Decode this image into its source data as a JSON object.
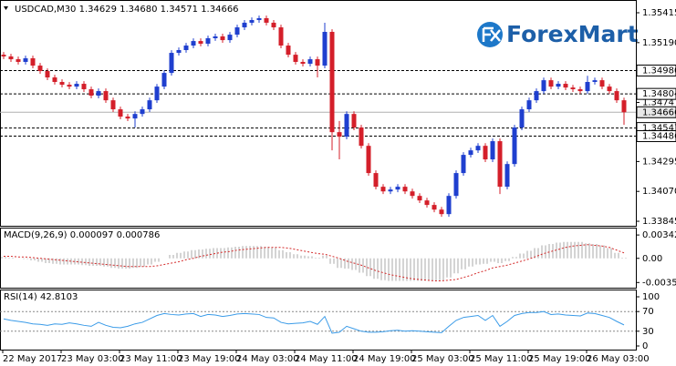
{
  "chart_data": [
    {
      "type": "candlestick",
      "title": "USDCAD,M30  1.34629 1.34680 1.34571 1.34666",
      "logo": "ForexMart",
      "up_color": "#1f3fcf",
      "down_color": "#d41f2a",
      "ylim": [
        1.33811,
        1.35511
      ],
      "yticks": [
        1.35415,
        {
          "value": 1.3519,
          "label": "1.35190"
        },
        1.3474,
        1.34295,
        {
          "value": 1.3407,
          "label": "1.34070"
        },
        1.33845
      ],
      "levels": [
        {
          "value": 1.3498,
          "label": "1.34980",
          "line": "dashed"
        },
        {
          "value": 1.34804,
          "line": "dashed"
        },
        {
          "value": 1.34666,
          "line": "solid"
        },
        {
          "value": 1.34547,
          "line": "dashed"
        },
        {
          "value": 1.34486,
          "line": "dashed"
        }
      ],
      "x_labels": [
        "22 May 2017",
        "23 May 03:00",
        "23 May 11:00",
        "23 May 19:00",
        "24 May 03:00",
        "24 May 11:00",
        "24 May 19:00",
        "25 May 03:00",
        "25 May 11:00",
        "25 May 19:00",
        "26 May 03:00"
      ],
      "candles": [
        [
          1.35099,
          1.35119,
          1.35066,
          1.35086
        ],
        [
          1.35086,
          1.35106,
          1.35045,
          1.35065
        ],
        [
          1.35065,
          1.35085,
          1.35025,
          1.35045
        ],
        [
          1.35045,
          1.35092,
          1.35025,
          1.35072
        ],
        [
          1.35072,
          1.35092,
          1.34997,
          1.35017
        ],
        [
          1.35017,
          1.35037,
          1.34956,
          1.34976
        ],
        [
          1.34976,
          1.34996,
          1.34908,
          1.34928
        ],
        [
          1.34928,
          1.34948,
          1.34874,
          1.34894
        ],
        [
          1.34894,
          1.34914,
          1.34853,
          1.34873
        ],
        [
          1.34873,
          1.34893,
          1.34839,
          1.34859
        ],
        [
          1.34859,
          1.349,
          1.34839,
          1.3488
        ],
        [
          1.3488,
          1.349,
          1.34819,
          1.34839
        ],
        [
          1.34839,
          1.34859,
          1.34771,
          1.34791
        ],
        [
          1.34791,
          1.34845,
          1.34771,
          1.34825
        ],
        [
          1.34825,
          1.34845,
          1.34736,
          1.34756
        ],
        [
          1.34756,
          1.34776,
          1.34668,
          1.34688
        ],
        [
          1.34688,
          1.34708,
          1.34613,
          1.34633
        ],
        [
          1.34633,
          1.34653,
          1.34599,
          1.34619
        ],
        [
          1.34619,
          1.34673,
          1.34551,
          1.34653
        ],
        [
          1.34653,
          1.34708,
          1.34633,
          1.34688
        ],
        [
          1.34688,
          1.34776,
          1.34668,
          1.34756
        ],
        [
          1.34756,
          1.34879,
          1.34736,
          1.34859
        ],
        [
          1.34859,
          1.34982,
          1.34839,
          1.34962
        ],
        [
          1.34962,
          1.35133,
          1.34942,
          1.35113
        ],
        [
          1.35113,
          1.35154,
          1.35093,
          1.35134
        ],
        [
          1.35134,
          1.35188,
          1.35114,
          1.35168
        ],
        [
          1.35168,
          1.35222,
          1.35148,
          1.35202
        ],
        [
          1.35202,
          1.35222,
          1.35162,
          1.35182
        ],
        [
          1.35182,
          1.35243,
          1.35162,
          1.35223
        ],
        [
          1.35223,
          1.35257,
          1.35203,
          1.35237
        ],
        [
          1.35237,
          1.35257,
          1.35189,
          1.35209
        ],
        [
          1.35209,
          1.3527,
          1.35189,
          1.3525
        ],
        [
          1.3525,
          1.35325,
          1.3523,
          1.35305
        ],
        [
          1.35305,
          1.3536,
          1.35285,
          1.3534
        ],
        [
          1.3534,
          1.3538,
          1.3532,
          1.3536
        ],
        [
          1.3536,
          1.35394,
          1.3534,
          1.35374
        ],
        [
          1.35374,
          1.35394,
          1.3532,
          1.3534
        ],
        [
          1.3534,
          1.3536,
          1.35285,
          1.35305
        ],
        [
          1.35305,
          1.35325,
          1.35148,
          1.35168
        ],
        [
          1.35168,
          1.35188,
          1.35079,
          1.35099
        ],
        [
          1.35099,
          1.35119,
          1.35025,
          1.35045
        ],
        [
          1.35045,
          1.35065,
          1.35011,
          1.35031
        ],
        [
          1.35031,
          1.35085,
          1.35011,
          1.35065
        ],
        [
          1.35065,
          1.35085,
          1.34928,
          1.35017
        ],
        [
          1.35017,
          1.3534,
          1.34997,
          1.35271
        ],
        [
          1.35271,
          1.35291,
          1.34379,
          1.34516
        ],
        [
          1.34516,
          1.346,
          1.34311,
          1.34482
        ],
        [
          1.34482,
          1.34673,
          1.34462,
          1.34653
        ],
        [
          1.34653,
          1.34673,
          1.34531,
          1.34551
        ],
        [
          1.34551,
          1.34571,
          1.34393,
          1.34413
        ],
        [
          1.34413,
          1.34433,
          1.34188,
          1.34208
        ],
        [
          1.34208,
          1.34228,
          1.34085,
          1.34105
        ],
        [
          1.34105,
          1.34125,
          1.3405,
          1.3407
        ],
        [
          1.3407,
          1.34104,
          1.3405,
          1.34084
        ],
        [
          1.34084,
          1.34125,
          1.34064,
          1.34105
        ],
        [
          1.34105,
          1.34125,
          1.3405,
          1.3407
        ],
        [
          1.3407,
          1.3409,
          1.34016,
          1.34036
        ],
        [
          1.34036,
          1.34056,
          1.33982,
          1.34002
        ],
        [
          1.34002,
          1.34022,
          1.33948,
          1.33968
        ],
        [
          1.33968,
          1.33988,
          1.33913,
          1.33933
        ],
        [
          1.33933,
          1.33953,
          1.33879,
          1.33899
        ],
        [
          1.33899,
          1.34056,
          1.33879,
          1.34036
        ],
        [
          1.34036,
          1.34228,
          1.34016,
          1.34208
        ],
        [
          1.34208,
          1.34365,
          1.34188,
          1.34345
        ],
        [
          1.34345,
          1.34399,
          1.34325,
          1.34379
        ],
        [
          1.34379,
          1.34433,
          1.34359,
          1.34413
        ],
        [
          1.34413,
          1.34433,
          1.34291,
          1.34311
        ],
        [
          1.34311,
          1.34468,
          1.34291,
          1.34448
        ],
        [
          1.34448,
          1.34468,
          1.3405,
          1.34105
        ],
        [
          1.34105,
          1.34296,
          1.34085,
          1.34276
        ],
        [
          1.34276,
          1.34571,
          1.34256,
          1.34551
        ],
        [
          1.34551,
          1.34708,
          1.34531,
          1.34688
        ],
        [
          1.34688,
          1.34776,
          1.34668,
          1.34756
        ],
        [
          1.34756,
          1.34845,
          1.34736,
          1.34825
        ],
        [
          1.34825,
          1.34927,
          1.34805,
          1.34907
        ],
        [
          1.34907,
          1.34927,
          1.34839,
          1.34859
        ],
        [
          1.34859,
          1.349,
          1.34839,
          1.3488
        ],
        [
          1.3488,
          1.349,
          1.34832,
          1.34852
        ],
        [
          1.34852,
          1.34872,
          1.34819,
          1.34839
        ],
        [
          1.34839,
          1.34859,
          1.34805,
          1.34825
        ],
        [
          1.34825,
          1.3494,
          1.34805,
          1.34894
        ],
        [
          1.34894,
          1.34927,
          1.34874,
          1.34907
        ],
        [
          1.34907,
          1.34927,
          1.34839,
          1.34859
        ],
        [
          1.34859,
          1.34879,
          1.34805,
          1.34825
        ],
        [
          1.34825,
          1.34845,
          1.34736,
          1.34756
        ],
        [
          1.34756,
          1.34776,
          1.34571,
          1.34666
        ]
      ]
    },
    {
      "type": "macd",
      "title": "MACD(9,26,9) 0.000097 0.000786",
      "ylim": [
        -0.0043,
        0.0045
      ],
      "yticks": [
        0.00342,
        {
          "value": 0,
          "label": "0.00"
        },
        -0.00354
      ],
      "series": [
        {
          "name": "histogram",
          "color": "#a8a8a8",
          "values": [
            0.0002,
            0.0001,
            0,
            -0.0001,
            -0.0003,
            -0.0005,
            -0.0007,
            -0.0008,
            -0.0009,
            -0.0009,
            -0.0009,
            -0.001,
            -0.0011,
            -0.0011,
            -0.0012,
            -0.0014,
            -0.0015,
            -0.0015,
            -0.0014,
            -0.0012,
            -0.0009,
            -0.0005,
            0,
            0.0005,
            0.0008,
            0.001,
            0.0012,
            0.0013,
            0.0014,
            0.0015,
            0.0015,
            0.0016,
            0.0017,
            0.0018,
            0.0018,
            0.0018,
            0.0017,
            0.0016,
            0.0012,
            0.0009,
            0.0006,
            0.0004,
            0.0003,
            0.0001,
            0.0004,
            -0.0008,
            -0.0014,
            -0.0015,
            -0.0017,
            -0.0021,
            -0.0026,
            -0.003,
            -0.0032,
            -0.0033,
            -0.0033,
            -0.0033,
            -0.0033,
            -0.0033,
            -0.0033,
            -0.0033,
            -0.0032,
            -0.0028,
            -0.0022,
            -0.0016,
            -0.0012,
            -0.0009,
            -0.0008,
            -0.0005,
            -0.0007,
            -0.0004,
            0.0002,
            0.0007,
            0.0011,
            0.0015,
            0.0019,
            0.0021,
            0.0023,
            0.0024,
            0.0024,
            0.0024,
            0.0022,
            0.0021,
            0.0019,
            0.0015,
            0.0008,
            0.0001
          ]
        },
        {
          "name": "signal",
          "color": "#d42a2a",
          "values": [
            0.0003,
            0.0003,
            0.0002,
            0.0002,
            0.0001,
            0,
            -0.0001,
            -0.0002,
            -0.0003,
            -0.0004,
            -0.0005,
            -0.0006,
            -0.0007,
            -0.0008,
            -0.0009,
            -0.001,
            -0.0011,
            -0.0012,
            -0.0012,
            -0.0012,
            -0.0012,
            -0.0011,
            -0.0009,
            -0.0007,
            -0.0005,
            -0.0002,
            0,
            0.0003,
            0.0005,
            0.0007,
            0.0009,
            0.001,
            0.0012,
            0.0013,
            0.0014,
            0.0015,
            0.0016,
            0.0016,
            0.0016,
            0.0015,
            0.0013,
            0.0011,
            0.0009,
            0.0007,
            0.0006,
            0.0003,
            0,
            -0.0004,
            -0.0007,
            -0.001,
            -0.0014,
            -0.0018,
            -0.0021,
            -0.0024,
            -0.0026,
            -0.0028,
            -0.003,
            -0.0031,
            -0.0032,
            -0.0033,
            -0.0033,
            -0.0032,
            -0.0031,
            -0.0028,
            -0.0025,
            -0.0021,
            -0.0018,
            -0.0014,
            -0.0012,
            -0.001,
            -0.0007,
            -0.0004,
            -0.0001,
            0.0003,
            0.0007,
            0.001,
            0.0013,
            0.0016,
            0.0018,
            0.0019,
            0.002,
            0.0019,
            0.0018,
            0.0016,
            0.0012,
            0.0008
          ]
        }
      ]
    },
    {
      "type": "rsi",
      "title": "RSI(14) 42.8103",
      "color": "#3a9be8",
      "ylim": [
        -7.4,
        114.8
      ],
      "yticks": [
        100,
        70,
        30,
        0
      ],
      "levels": [
        70,
        30
      ],
      "values": [
        55,
        52,
        50,
        48,
        45,
        44,
        42,
        45,
        44,
        47,
        45,
        42,
        40,
        48,
        42,
        38,
        37,
        40,
        45,
        48,
        55,
        62,
        66,
        64,
        63,
        65,
        66,
        60,
        64,
        63,
        60,
        62,
        65,
        66,
        65,
        64,
        58,
        57,
        48,
        45,
        46,
        47,
        50,
        44,
        60,
        26,
        28,
        40,
        35,
        30,
        28,
        28,
        29,
        31,
        32,
        30,
        31,
        30,
        29,
        28,
        27,
        40,
        52,
        58,
        60,
        62,
        52,
        62,
        40,
        50,
        62,
        66,
        68,
        68,
        70,
        64,
        65,
        63,
        62,
        61,
        67,
        66,
        62,
        58,
        50,
        42.8103
      ]
    }
  ]
}
